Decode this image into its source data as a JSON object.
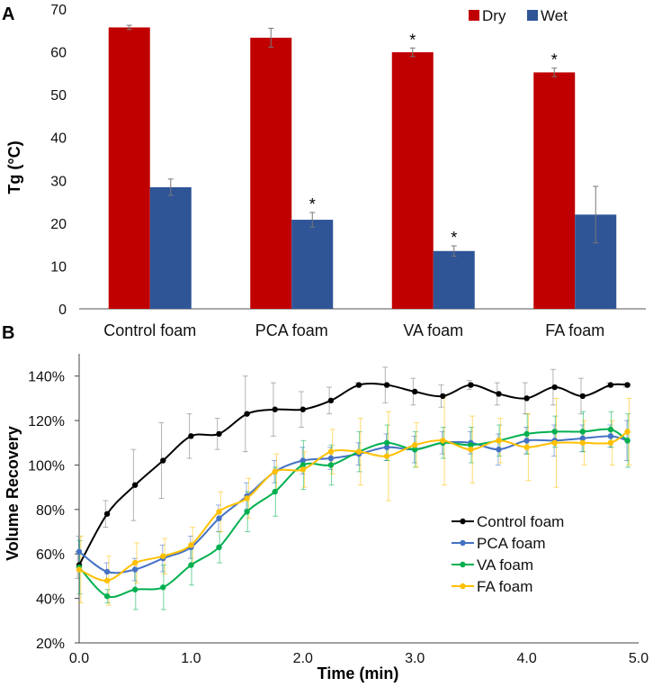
{
  "chart_data": [
    {
      "type": "bar",
      "panel_label": "A",
      "title": "",
      "xlabel": "",
      "ylabel": "Tg (°C)",
      "ylim": [
        0,
        70
      ],
      "yticks": [
        0,
        10,
        20,
        30,
        40,
        50,
        60,
        70
      ],
      "categories": [
        "Control foam",
        "PCA foam",
        "VA foam",
        "FA foam"
      ],
      "legend_position": "top-right",
      "series": [
        {
          "name": "Dry",
          "color": "#c00000",
          "values": [
            65.7,
            63.3,
            59.9,
            55.2
          ],
          "errors": [
            0.5,
            2.2,
            1.0,
            1.0
          ],
          "significant": [
            false,
            false,
            true,
            true
          ]
        },
        {
          "name": "Wet",
          "color": "#2f5597",
          "values": [
            28.4,
            20.8,
            13.5,
            22.0
          ],
          "errors": [
            1.9,
            1.7,
            1.2,
            6.6
          ],
          "significant": [
            false,
            true,
            true,
            false
          ]
        }
      ],
      "significance_marker": "*"
    },
    {
      "type": "line",
      "panel_label": "B",
      "title": "",
      "xlabel": "Time (min)",
      "ylabel": "Volume Recovery",
      "xlim": [
        0,
        5
      ],
      "ylim": [
        20,
        150
      ],
      "xticks": [
        "0.0",
        "1.0",
        "2.0",
        "3.0",
        "4.0",
        "5.0"
      ],
      "yticks": [
        "20%",
        "40%",
        "60%",
        "80%",
        "100%",
        "120%",
        "140%"
      ],
      "legend_position": "bottom-right",
      "x": [
        0,
        0.25,
        0.5,
        0.75,
        1.0,
        1.25,
        1.5,
        1.75,
        2.0,
        2.25,
        2.5,
        2.75,
        3.0,
        3.25,
        3.5,
        3.75,
        4.0,
        4.25,
        4.5,
        4.75,
        4.9
      ],
      "series": [
        {
          "name": "Control foam",
          "color": "#000000",
          "values": [
            55,
            78,
            91,
            102,
            113,
            114,
            123,
            125,
            125,
            129,
            136,
            136,
            133,
            131,
            136,
            132,
            130,
            135,
            131,
            136,
            136
          ],
          "errors": [
            6,
            6,
            16,
            17,
            10,
            7,
            17,
            12,
            8,
            6,
            1,
            8,
            6,
            5,
            2,
            5,
            7,
            8,
            8,
            1,
            1
          ]
        },
        {
          "name": "PCA foam",
          "color": "#4472c4",
          "values": [
            61,
            52,
            53,
            58,
            63,
            76,
            86,
            97,
            102,
            103,
            105,
            108,
            107,
            110,
            110,
            107,
            111,
            111,
            112,
            113,
            111
          ],
          "errors": [
            7,
            4,
            5,
            6,
            5,
            6,
            6,
            5,
            6,
            5,
            5,
            6,
            6,
            5,
            5,
            7,
            6,
            7,
            6,
            5,
            9
          ]
        },
        {
          "name": "VA foam",
          "color": "#00b050",
          "values": [
            54,
            41,
            44,
            45,
            55,
            63,
            79,
            88,
            100,
            100,
            106,
            110,
            107,
            110,
            109,
            111,
            114,
            115,
            115,
            116,
            111
          ],
          "errors": [
            12,
            3,
            9,
            10,
            9,
            7,
            9,
            11,
            11,
            9,
            9,
            8,
            8,
            7,
            8,
            7,
            9,
            7,
            9,
            8,
            12
          ]
        },
        {
          "name": "FA foam",
          "color": "#ffc000",
          "values": [
            53,
            48,
            56,
            59,
            64,
            79,
            85,
            97,
            98,
            106,
            106,
            104,
            109,
            111,
            107,
            111,
            108,
            110,
            110,
            110,
            115
          ],
          "errors": [
            15,
            11,
            9,
            8,
            8,
            9,
            9,
            8,
            8,
            10,
            15,
            20,
            10,
            20,
            15,
            10,
            15,
            20,
            10,
            10,
            15
          ]
        }
      ]
    }
  ]
}
